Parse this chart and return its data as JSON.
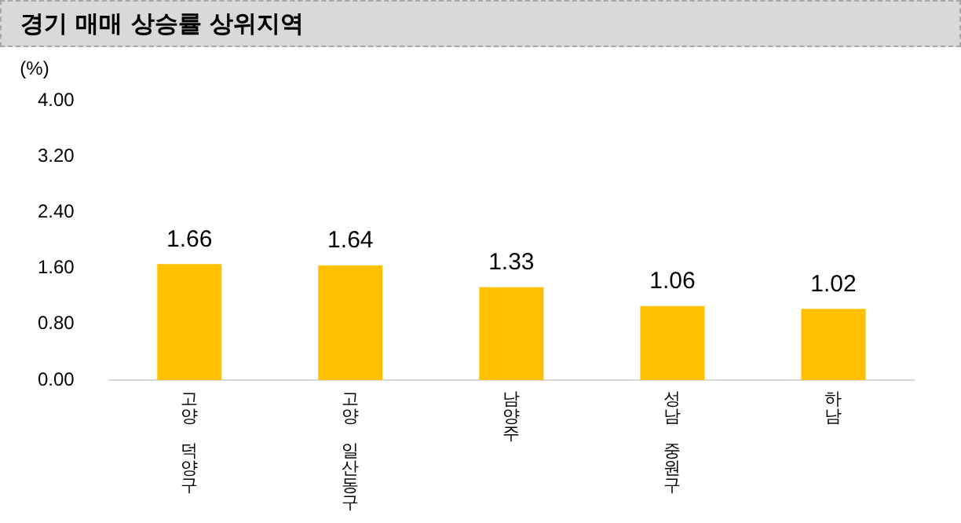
{
  "chart_data": {
    "type": "bar",
    "title": "경기 매매 상승률 상위지역",
    "ylabel": "(%)",
    "categories": [
      "고양 덕양구",
      "고양 일산동구",
      "남양주",
      "성남 중원구",
      "하남"
    ],
    "values": [
      1.66,
      1.64,
      1.33,
      1.06,
      1.02
    ],
    "color": "#ffc000",
    "ylim": [
      0,
      4
    ],
    "yticks": [
      {
        "value": 0,
        "label": "0.00"
      },
      {
        "value": 0.8,
        "label": "0.80"
      },
      {
        "value": 1.6,
        "label": "1.60"
      },
      {
        "value": 2.4,
        "label": "2.40"
      },
      {
        "value": 3.2,
        "label": "3.20"
      },
      {
        "value": 4,
        "label": "4.00"
      }
    ],
    "data_labels": true,
    "grid": false,
    "legend": false
  }
}
